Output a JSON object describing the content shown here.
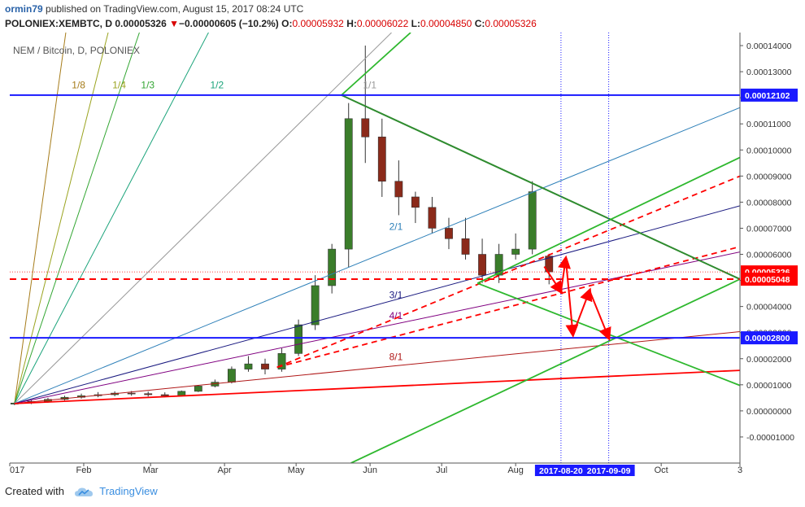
{
  "header": {
    "author": "ormin79",
    "published_text": "published on TradingView.com, August 15, 2017 08:24 UTC",
    "symbol": "POLONIEX:XEMBTC, D",
    "last_price": "0.00005326",
    "change_arrow": "▼",
    "change": "−0.00000605 (−10.2%)",
    "open_label": "O:",
    "open": "0.00005932",
    "high_label": "H:",
    "high": "0.00006022",
    "low_label": "L:",
    "low": "0.00004850",
    "close_label": "C:",
    "close": "0.00005326"
  },
  "footer": {
    "created_with": "Created with",
    "brand": "TradingView"
  },
  "chart_data": {
    "type": "candlestick",
    "title": "NEM / Bitcoin, D, POLONIEX",
    "y_axis": {
      "min": -2e-05,
      "max": 0.000145,
      "ticks": [
        "0.00014000",
        "0.00013000",
        "0.00012000",
        "0.00011000",
        "0.00010000",
        "0.00009000",
        "0.00008000",
        "0.00007000",
        "0.00006000",
        "0.00005000",
        "0.00004000",
        "0.00003000",
        "0.00002000",
        "0.00001000",
        "0.00000000",
        "-0.00001000"
      ],
      "price_labels": [
        {
          "text": "0.00012102",
          "value": 0.00012102,
          "color": "#1a1aff"
        },
        {
          "text": "0.00005326",
          "value": 5.326e-05,
          "color": "#ff0000"
        },
        {
          "text": "0.00005048",
          "value": 5.048e-05,
          "color": "#ff0000"
        },
        {
          "text": "0.00002800",
          "value": 2.8e-05,
          "color": "#1a1aff"
        }
      ]
    },
    "x_axis": {
      "start": "2017-01-01",
      "end": "2017-11-03",
      "ticks": [
        {
          "text": "017",
          "date": "2017-01-01"
        },
        {
          "text": "Feb",
          "date": "2017-02-01"
        },
        {
          "text": "Mar",
          "date": "2017-03-01"
        },
        {
          "text": "Apr",
          "date": "2017-04-01"
        },
        {
          "text": "May",
          "date": "2017-05-01"
        },
        {
          "text": "Jun",
          "date": "2017-06-01"
        },
        {
          "text": "Jul",
          "date": "2017-07-01"
        },
        {
          "text": "Aug",
          "date": "2017-08-01"
        },
        {
          "text": "Oct",
          "date": "2017-10-01"
        },
        {
          "text": "3",
          "date": "2017-11-03"
        }
      ],
      "date_labels": [
        {
          "text": "2017-08-20",
          "date": "2017-08-20"
        },
        {
          "text": "2017-09-09",
          "date": "2017-09-09"
        }
      ]
    },
    "horizontal_lines": [
      {
        "value": 0.00012102,
        "color": "#1a1aff",
        "style": "solid"
      },
      {
        "value": 2.8e-05,
        "color": "#1a1aff",
        "style": "solid"
      },
      {
        "value": 5.048e-05,
        "color": "#ff0000",
        "style": "dashed"
      },
      {
        "value": 5.326e-05,
        "color": "#ff0000",
        "style": "dotted"
      }
    ],
    "vertical_lines": [
      {
        "date": "2017-08-20",
        "color": "#1a1aff",
        "style": "dotted"
      },
      {
        "date": "2017-09-09",
        "color": "#1a1aff",
        "style": "dotted"
      }
    ],
    "gann_fan": {
      "origin": {
        "date": "2017-01-03",
        "value": 2.8e-06
      },
      "lines": [
        {
          "label": "1/8",
          "end": {
            "date": "2017-01-26",
            "value": 0.000155
          },
          "color": "#a67c1a"
        },
        {
          "label": "1/4",
          "end": {
            "date": "2017-02-14",
            "value": 0.000155
          },
          "color": "#9aa31f"
        },
        {
          "label": "1/3",
          "end": {
            "date": "2017-02-28",
            "value": 0.000155
          },
          "color": "#33a633"
        },
        {
          "label": "1/2",
          "end": {
            "date": "2017-03-31",
            "value": 0.000155
          },
          "color": "#1aa37a"
        },
        {
          "label": "1/1",
          "end": {
            "date": "2017-06-10",
            "value": 0.000145
          },
          "color": "#999999"
        },
        {
          "label": "2/1",
          "end": {
            "date": "2017-11-03",
            "value": 0.00011623
          },
          "color": "#2c7fb8"
        },
        {
          "label": "3/1",
          "end": {
            "date": "2017-11-03",
            "value": 7.859e-05
          },
          "color": "#1a1a80"
        },
        {
          "label": "4/1",
          "end": {
            "date": "2017-11-03",
            "value": 6.089e-05
          },
          "color": "#800080"
        },
        {
          "label": "8/1",
          "end": {
            "date": "2017-11-03",
            "value": 3.036e-05
          },
          "color": "#b01818"
        }
      ],
      "label_positions": [
        {
          "label": "1/8",
          "date": "2017-01-27",
          "value": 0.00012365
        },
        {
          "label": "1/4",
          "date": "2017-02-13",
          "value": 0.00012365
        },
        {
          "label": "1/3",
          "date": "2017-02-25",
          "value": 0.00012365
        },
        {
          "label": "1/2",
          "date": "2017-03-26",
          "value": 0.00012365
        },
        {
          "label": "1/1",
          "date": "2017-05-29",
          "value": 0.00012365
        },
        {
          "label": "2/1",
          "date": "2017-06-09",
          "value": 6.939e-05
        },
        {
          "label": "3/1",
          "date": "2017-06-09",
          "value": 4.317e-05
        },
        {
          "label": "4/1",
          "date": "2017-06-09",
          "value": 3.518e-05
        },
        {
          "label": "8/1",
          "date": "2017-06-09",
          "value": 1.952e-05
        }
      ]
    },
    "trend_lines": [
      {
        "from": {
          "date": "2017-01-03",
          "value": 2.8e-06
        },
        "to": {
          "date": "2017-11-03",
          "value": 1.553e-05
        },
        "color": "#ff0000",
        "style": "solid"
      },
      {
        "from": {
          "date": "2017-04-23",
          "value": 1.672e-05
        },
        "to": {
          "date": "2017-11-03",
          "value": 8.998e-05
        },
        "color": "#ff0000",
        "style": "dashed"
      },
      {
        "from": {
          "date": "2017-04-23",
          "value": 1.672e-05
        },
        "to": {
          "date": "2017-11-03",
          "value": 6.294e-05
        },
        "color": "#ff0000",
        "style": "dashed"
      },
      {
        "from": {
          "date": "2017-05-20",
          "value": 0.00012102
        },
        "to": {
          "date": "2017-11-03",
          "value": 5.048e-05
        },
        "color": "#2e8b2e",
        "style": "solid"
      },
      {
        "from": {
          "date": "2017-05-20",
          "value": 0.00012102
        },
        "to": {
          "date": "2017-06-18",
          "value": 0.000145
        },
        "color": "#2eb82e",
        "style": "solid"
      },
      {
        "from": {
          "date": "2017-07-16",
          "value": 4.892e-05
        },
        "to": {
          "date": "2017-11-03",
          "value": 9.714e-05
        },
        "color": "#2eb82e",
        "style": "solid"
      },
      {
        "from": {
          "date": "2017-07-16",
          "value": 4.892e-05
        },
        "to": {
          "date": "2017-11-03",
          "value": 9.75e-06
        },
        "color": "#2eb82e",
        "style": "solid"
      },
      {
        "from": {
          "date": "2017-05-24",
          "value": -2e-05
        },
        "to": {
          "date": "2017-11-03",
          "value": 5.048e-05
        },
        "color": "#2eb82e",
        "style": "solid"
      }
    ],
    "projection_arrows": [
      {
        "date": "2017-08-13",
        "value": 5.532e-05
      },
      {
        "date": "2017-08-20",
        "value": 4.57e-05
      },
      {
        "date": "2017-08-22",
        "value": 5.839e-05
      },
      {
        "date": "2017-08-25",
        "value": 2.929e-05
      },
      {
        "date": "2017-09-01",
        "value": 4.608e-05
      },
      {
        "date": "2017-09-09",
        "value": 2.8e-05
      }
    ],
    "candles_note": "Daily OHLC, Jan–Aug 15 2017",
    "candles": [
      [
        "2017-01-03",
        2.6e-06,
        3.5e-06,
        2.2e-06,
        3e-06
      ],
      [
        "2017-01-10",
        3.1e-06,
        4.2e-06,
        2.6e-06,
        3.6e-06
      ],
      [
        "2017-01-17",
        3.6e-06,
        5e-06,
        3.1e-06,
        4.4e-06
      ],
      [
        "2017-01-24",
        4.4e-06,
        5.8e-06,
        4e-06,
        5.2e-06
      ],
      [
        "2017-01-31",
        5.2e-06,
        6.6e-06,
        4.7e-06,
        5.8e-06
      ],
      [
        "2017-02-07",
        5.8e-06,
        7.2e-06,
        5.2e-06,
        6.2e-06
      ],
      [
        "2017-02-14",
        6.2e-06,
        7.5e-06,
        5.6e-06,
        6.8e-06
      ],
      [
        "2017-02-21",
        6.8e-06,
        7.6e-06,
        5.8e-06,
        6.6e-06
      ],
      [
        "2017-02-28",
        6.6e-06,
        7.4e-06,
        5.5e-06,
        6.2e-06
      ],
      [
        "2017-03-07",
        6.2e-06,
        7.1e-06,
        5.2e-06,
        5.8e-06
      ],
      [
        "2017-03-14",
        5.8e-06,
        7.8e-06,
        5.5e-06,
        7.5e-06
      ],
      [
        "2017-03-21",
        7.5e-06,
        9.8e-06,
        7.2e-06,
        9.5e-06
      ],
      [
        "2017-03-28",
        9.5e-06,
        1.2e-05,
        9e-06,
        1.1e-05
      ],
      [
        "2017-04-04",
        1.1e-05,
        1.7e-05,
        1.05e-05,
        1.6e-05
      ],
      [
        "2017-04-11",
        1.6e-05,
        2.1e-05,
        1.5e-05,
        1.8e-05
      ],
      [
        "2017-04-18",
        1.8e-05,
        2e-05,
        1.4e-05,
        1.6e-05
      ],
      [
        "2017-04-25",
        1.6e-05,
        2.4e-05,
        1.5e-05,
        2.2e-05
      ],
      [
        "2017-05-02",
        2.2e-05,
        3.5e-05,
        2.1e-05,
        3.3e-05
      ],
      [
        "2017-05-09",
        3.3e-05,
        5.2e-05,
        3.1e-05,
        4.8e-05
      ],
      [
        "2017-05-16",
        4.8e-05,
        6.4e-05,
        4.5e-05,
        6.2e-05
      ],
      [
        "2017-05-23",
        6.2e-05,
        0.000118,
        5.5e-05,
        0.000112
      ],
      [
        "2017-05-30",
        0.000112,
        0.00014,
        9.5e-05,
        0.000105
      ],
      [
        "2017-06-06",
        0.000105,
        0.000112,
        8.2e-05,
        8.8e-05
      ],
      [
        "2017-06-13",
        8.8e-05,
        9.6e-05,
        7.5e-05,
        8.2e-05
      ],
      [
        "2017-06-20",
        8.2e-05,
        8.4e-05,
        7.2e-05,
        7.8e-05
      ],
      [
        "2017-06-27",
        7.8e-05,
        8.2e-05,
        6.8e-05,
        7e-05
      ],
      [
        "2017-07-04",
        7e-05,
        7.4e-05,
        6.2e-05,
        6.6e-05
      ],
      [
        "2017-07-11",
        6.6e-05,
        7.4e-05,
        5.8e-05,
        6e-05
      ],
      [
        "2017-07-18",
        6e-05,
        6.6e-05,
        4.9e-05,
        5.2e-05
      ],
      [
        "2017-07-25",
        5.2e-05,
        6.4e-05,
        4.9e-05,
        6e-05
      ],
      [
        "2017-08-01",
        6e-05,
        6.8e-05,
        5.8e-05,
        6.2e-05
      ],
      [
        "2017-08-08",
        6.2e-05,
        8.8e-05,
        6e-05,
        8.4e-05
      ],
      [
        "2017-08-15",
        5.932e-05,
        6.022e-05,
        4.85e-05,
        5.326e-05
      ]
    ]
  }
}
